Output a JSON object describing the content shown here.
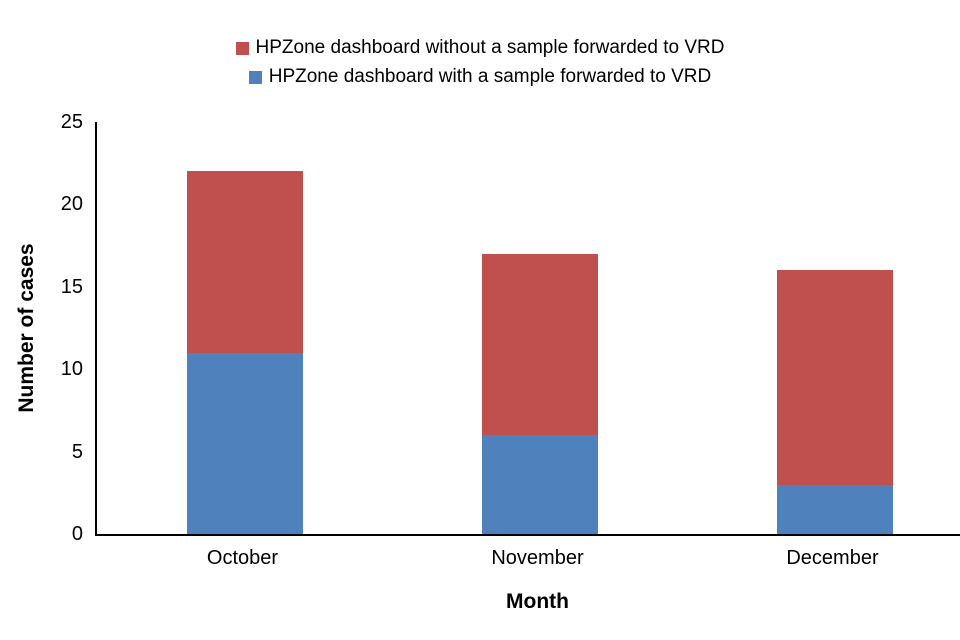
{
  "chart_data": {
    "type": "bar",
    "stacked": true,
    "categories": [
      "October",
      "November",
      "December"
    ],
    "series": [
      {
        "name": "HPZone dashboard with a sample forwarded to VRD",
        "color": "#4f81bd",
        "values": [
          11,
          6,
          3
        ]
      },
      {
        "name": "HPZone dashboard without a sample forwarded to VRD",
        "color": "#c0504d",
        "values": [
          11,
          11,
          13
        ]
      }
    ],
    "totals": [
      22,
      17,
      16
    ],
    "title": "",
    "xlabel": "Month",
    "ylabel": "Number of cases",
    "ylim": [
      0,
      25
    ],
    "yticks": [
      0,
      5,
      10,
      15,
      20,
      25
    ],
    "legend_position": "top",
    "grid": "off",
    "legend_order_note": "legend lists the 'without' (red) series first, then the 'with' (blue) series"
  }
}
